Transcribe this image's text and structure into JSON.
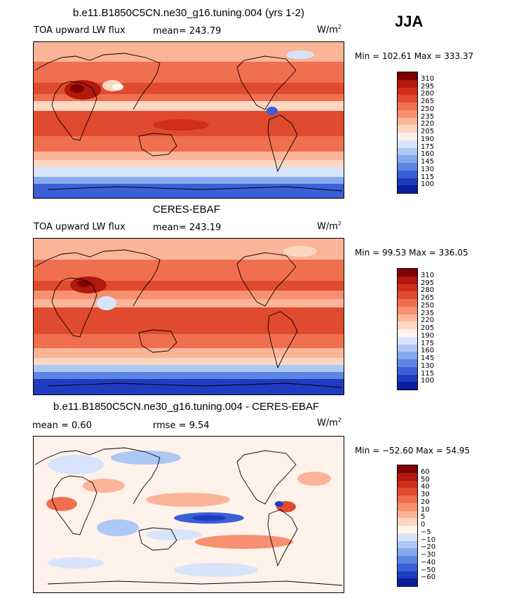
{
  "season": "JJA",
  "panels": [
    {
      "title": "b.e11.B1850C5CN.ne30_g16.tuning.004 (yrs 1-2)",
      "left_label": "TOA upward LW flux",
      "center_label": "mean= 243.79",
      "units": "W/m",
      "units_sup": "2",
      "minmax": "Min = 102.61 Max = 333.37",
      "colorbar_labels": [
        "310",
        "295",
        "280",
        "265",
        "250",
        "235",
        "220",
        "205",
        "190",
        "175",
        "160",
        "145",
        "130",
        "115",
        "100"
      ]
    },
    {
      "title": "CERES-EBAF",
      "left_label": "TOA upward LW flux",
      "center_label": "mean= 243.19",
      "units": "W/m",
      "units_sup": "2",
      "minmax": "Min =  99.53 Max = 336.05",
      "colorbar_labels": [
        "310",
        "295",
        "280",
        "265",
        "250",
        "235",
        "220",
        "205",
        "190",
        "175",
        "160",
        "145",
        "130",
        "115",
        "100"
      ]
    },
    {
      "title": "b.e11.B1850C5CN.ne30_g16.tuning.004 - CERES-EBAF",
      "left_label": "mean =    0.60",
      "center_label": "rmse =    9.54",
      "units": "W/m",
      "units_sup": "2",
      "minmax": "Min = −52.60 Max =  54.95",
      "colorbar_labels": [
        "60",
        "50",
        "40",
        "30",
        "20",
        "10",
        "5",
        "0",
        "−5",
        "−10",
        "−20",
        "−30",
        "−40",
        "−50",
        "−60"
      ]
    }
  ],
  "colors": {
    "scale": [
      "#7f0000",
      "#b2180b",
      "#d02d1c",
      "#e04a2e",
      "#ef6f4f",
      "#f6906f",
      "#fbb497",
      "#fdd7c2",
      "#fff2ea",
      "#d7e4fb",
      "#aec8f5",
      "#86a9ee",
      "#5d86e4",
      "#3a5fd6",
      "#1f3bbf",
      "#0b1e9c"
    ],
    "land_outline": "#000000"
  }
}
